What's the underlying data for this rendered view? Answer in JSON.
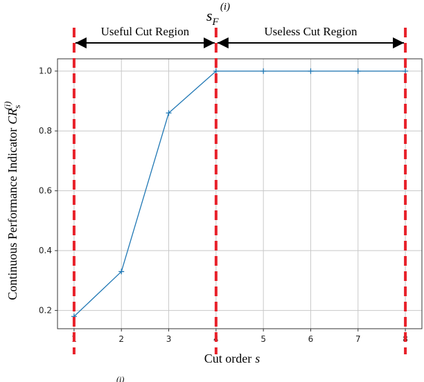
{
  "chart_data": {
    "type": "line",
    "x": [
      1,
      2,
      3,
      4,
      5,
      6,
      7,
      8
    ],
    "series": [
      {
        "name": "CR",
        "color": "#1f77b4",
        "values": [
          0.18,
          0.33,
          0.86,
          1.0,
          1.0,
          1.0,
          1.0,
          1.0
        ]
      }
    ],
    "xlim": [
      0.65,
      8.35
    ],
    "xticks": [
      1,
      2,
      3,
      4,
      5,
      6,
      7,
      8
    ],
    "ylim": [
      0.139,
      1.041
    ],
    "yticks": [
      0.2,
      0.4,
      0.6,
      0.8,
      {
        "value": 1,
        "label": "1.0"
      }
    ],
    "grid": true,
    "xlabel": {
      "text": "Cut order",
      "math": "s"
    },
    "ylabel": {
      "text": "Continuous Performance Indicator",
      "math": "CR",
      "sub": "s",
      "sup": "(i)"
    },
    "vlines": {
      "values": [
        1,
        4,
        8
      ],
      "color": "#e8212a"
    },
    "regions": [
      {
        "label": "Useful Cut Region",
        "from": 1,
        "to": 4
      },
      {
        "label": "Useless Cut Region",
        "from": 4,
        "to": 8
      }
    ],
    "vline_label": {
      "base": "s",
      "sub": "F",
      "sup": "(i)",
      "at": 4
    },
    "caption_fragment": "(i)"
  }
}
